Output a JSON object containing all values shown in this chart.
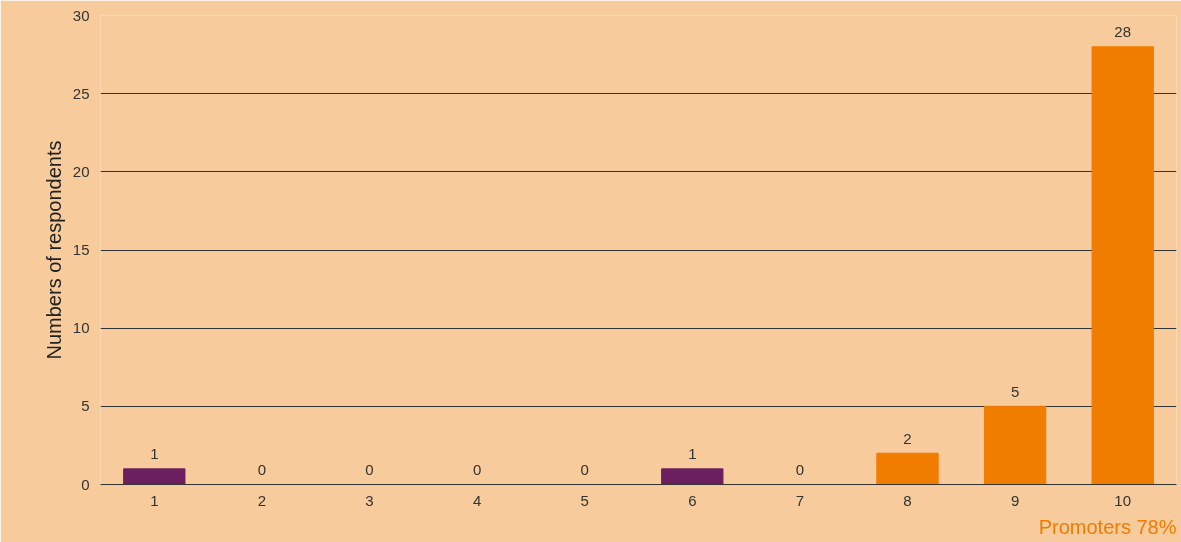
{
  "chart_data": {
    "type": "bar",
    "ylabel": "Numbers of respondents",
    "categories": [
      "1",
      "2",
      "3",
      "4",
      "5",
      "6",
      "7",
      "8",
      "9",
      "10"
    ],
    "values": [
      1,
      0,
      0,
      0,
      0,
      1,
      0,
      2,
      5,
      28
    ],
    "colors": [
      "#6b1f5e",
      "#6b1f5e",
      "#6b1f5e",
      "#6b1f5e",
      "#6b1f5e",
      "#6b1f5e",
      "#f07c00",
      "#f07c00",
      "#f07c00",
      "#f07c00"
    ],
    "ylim": [
      0,
      30
    ],
    "yticks": [
      0,
      5,
      10,
      15,
      20,
      25,
      30
    ],
    "grid": "y",
    "data_labels": true,
    "annotations": [
      "Promoters 78%"
    ]
  }
}
